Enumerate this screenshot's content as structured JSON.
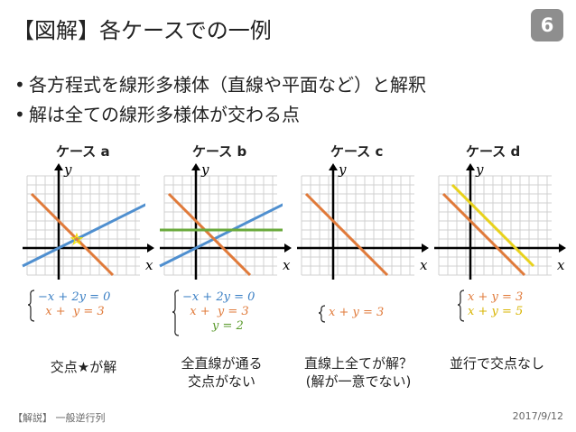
{
  "slide": {
    "title": "【図解】各ケースでの一例",
    "page_number": "6",
    "bullets": [
      "各方程式を線形多様体（直線や平面など）と解釈",
      "解は全ての線形多様体が交わる点"
    ],
    "footer_left": "【解説】 一般逆行列",
    "footer_right": "2017/9/12"
  },
  "cases": [
    {
      "label": "ケース a",
      "axis_x": "x",
      "axis_y": "y",
      "lines": [
        {
          "color": "#4f8fcf",
          "x1": -4,
          "y1": -2,
          "x2": 10,
          "y2": 5
        },
        {
          "color": "#e07a3a",
          "x1": -3,
          "y1": 6,
          "x2": 6,
          "y2": -3
        }
      ],
      "star": {
        "x": 2,
        "y": 1,
        "symbol": "☆"
      },
      "equations": [
        {
          "text": "−x + 2y = 0",
          "color": "#3a7fc4"
        },
        {
          "text": "  x +  y = 3",
          "color": "#e07a3a"
        }
      ],
      "caption": [
        "交点★が解"
      ]
    },
    {
      "label": "ケース b",
      "axis_x": "x",
      "axis_y": "y",
      "lines": [
        {
          "color": "#4f8fcf",
          "x1": -4,
          "y1": -2,
          "x2": 10,
          "y2": 5
        },
        {
          "color": "#e07a3a",
          "x1": -3,
          "y1": 6,
          "x2": 6,
          "y2": -3
        },
        {
          "color": "#6aaa3c",
          "x1": -4,
          "y1": 2,
          "x2": 10,
          "y2": 2
        }
      ],
      "equations": [
        {
          "text": "−x + 2y = 0",
          "color": "#3a7fc4"
        },
        {
          "text": "  x +  y = 3",
          "color": "#e07a3a"
        },
        {
          "text": "        y = 2",
          "color": "#5a9a2c"
        }
      ],
      "caption": [
        "全直線が通る",
        "交点がない"
      ]
    },
    {
      "label": "ケース c",
      "axis_x": "x",
      "axis_y": "y",
      "lines": [
        {
          "color": "#e07a3a",
          "x1": -3,
          "y1": 6,
          "x2": 6,
          "y2": -3
        }
      ],
      "equations": [
        {
          "text": "x + y = 3",
          "color": "#e07a3a"
        }
      ],
      "caption": [
        "直線上全てが解？",
        "(解が一意でない)"
      ]
    },
    {
      "label": "ケース d",
      "axis_x": "x",
      "axis_y": "y",
      "lines": [
        {
          "color": "#e07a3a",
          "x1": -3,
          "y1": 6,
          "x2": 6,
          "y2": -3
        },
        {
          "color": "#e8d21c",
          "x1": -2,
          "y1": 7,
          "x2": 7,
          "y2": -2
        }
      ],
      "equations": [
        {
          "text": "x + y = 3",
          "color": "#e07a3a"
        },
        {
          "text": "x + y = 5",
          "color": "#d8b400"
        }
      ],
      "caption": [
        "並行で交点なし"
      ]
    }
  ]
}
